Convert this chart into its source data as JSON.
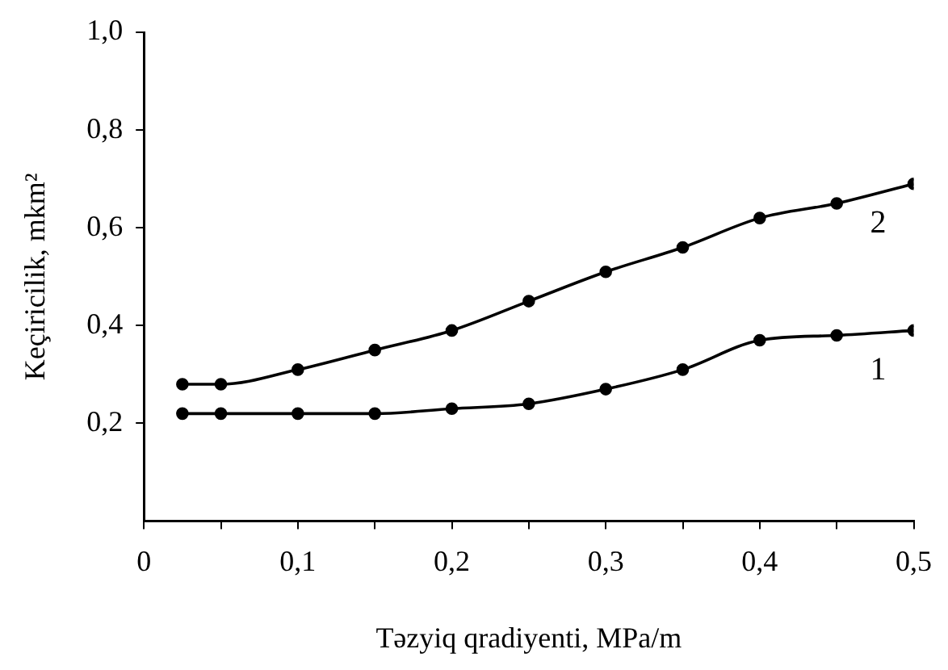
{
  "chart_data": {
    "type": "line",
    "xlabel": "Təzyiq qradiyenti, MPa/m",
    "ylabel": "Keçiricilik, mkm²",
    "x": [
      0.025,
      0.05,
      0.1,
      0.15,
      0.2,
      0.25,
      0.3,
      0.35,
      0.4,
      0.45,
      0.5
    ],
    "series": [
      {
        "name": "1",
        "color": "#000000",
        "values": [
          0.22,
          0.22,
          0.22,
          0.22,
          0.23,
          0.24,
          0.27,
          0.31,
          0.37,
          0.38,
          0.39
        ]
      },
      {
        "name": "2",
        "color": "#000000",
        "values": [
          0.28,
          0.28,
          0.31,
          0.35,
          0.39,
          0.45,
          0.51,
          0.56,
          0.62,
          0.65,
          0.69
        ]
      }
    ],
    "xlim": [
      0,
      0.5
    ],
    "xticks": [
      0,
      {
        "value": 0.05,
        "label": null
      },
      {
        "value": 0.1,
        "label": "0,1"
      },
      {
        "value": 0.15,
        "label": null
      },
      {
        "value": 0.2,
        "label": "0,2"
      },
      {
        "value": 0.25,
        "label": null
      },
      {
        "value": 0.3,
        "label": "0,3"
      },
      {
        "value": 0.35,
        "label": null
      },
      {
        "value": 0.4,
        "label": "0,4"
      },
      {
        "value": 0.45,
        "label": null
      },
      {
        "value": 0.5,
        "label": "0,5"
      }
    ],
    "ylim": [
      0,
      1.0
    ],
    "yticks": [
      {
        "value": 0.2,
        "label": "0,2"
      },
      {
        "value": 0.4,
        "label": "0,4"
      },
      {
        "value": 0.6,
        "label": "0,6"
      },
      {
        "value": 0.8,
        "label": "0,8"
      },
      {
        "value": 1.0,
        "label": "1,0"
      }
    ],
    "grid": false,
    "legend": false,
    "marker": "circle",
    "line_style": "solid"
  }
}
